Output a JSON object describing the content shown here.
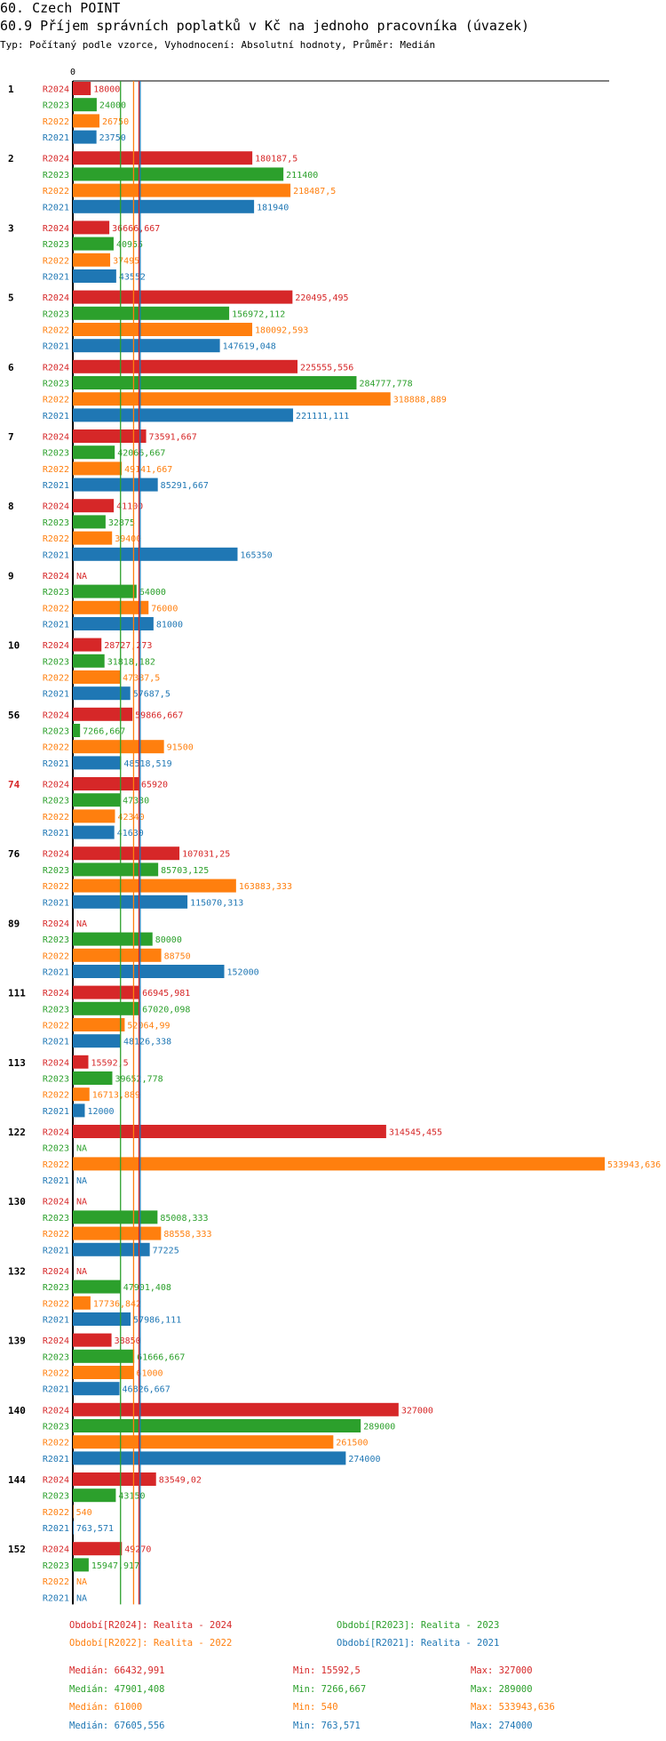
{
  "title_main": "60. Czech POINT",
  "title_sub": "60.9 Příjem správních poplatků v Kč na jednoho pracovníka (úvazek)",
  "subtitle": "Typ: Počítaný podle vzorce, Vyhodnocení: Absolutní hodnoty, Průměr: Medián",
  "chart_data": {
    "type": "bar",
    "orientation": "horizontal",
    "axis_zero_label": "0",
    "xlim": [
      0,
      533943.636
    ],
    "highlight_category": "74",
    "series": [
      {
        "key": "R2024",
        "name": "Období[R2024]: Realita - 2024",
        "color": "#d62728"
      },
      {
        "key": "R2023",
        "name": "Období[R2023]: Realita - 2023",
        "color": "#2ca02c"
      },
      {
        "key": "R2022",
        "name": "Období[R2022]: Realita - 2022",
        "color": "#ff7f0e"
      },
      {
        "key": "R2021",
        "name": "Období[R2021]: Realita - 2021",
        "color": "#1f77b4"
      }
    ],
    "categories": [
      {
        "id": "1",
        "values": [
          18000,
          24000,
          26750,
          23750
        ],
        "labels": [
          "18000",
          "24000",
          "26750",
          "23750"
        ]
      },
      {
        "id": "2",
        "values": [
          180187.5,
          211400,
          218487.5,
          181940
        ],
        "labels": [
          "180187,5",
          "211400",
          "218487,5",
          "181940"
        ]
      },
      {
        "id": "3",
        "values": [
          36666.667,
          40955,
          37495,
          43552
        ],
        "labels": [
          "36666,667",
          "40955",
          "37495",
          "43552"
        ]
      },
      {
        "id": "5",
        "values": [
          220495.495,
          156972.112,
          180092.593,
          147619.048
        ],
        "labels": [
          "220495,495",
          "156972,112",
          "180092,593",
          "147619,048"
        ]
      },
      {
        "id": "6",
        "values": [
          225555.556,
          284777.778,
          318888.889,
          221111.111
        ],
        "labels": [
          "225555,556",
          "284777,778",
          "318888,889",
          "221111,111"
        ]
      },
      {
        "id": "7",
        "values": [
          73591.667,
          42066.667,
          49141.667,
          85291.667
        ],
        "labels": [
          "73591,667",
          "42066,667",
          "49141,667",
          "85291,667"
        ]
      },
      {
        "id": "8",
        "values": [
          41100,
          32875,
          39400,
          165350
        ],
        "labels": [
          "41100",
          "32875",
          "39400",
          "165350"
        ]
      },
      {
        "id": "9",
        "values": [
          null,
          64000,
          76000,
          81000
        ],
        "labels": [
          "NA",
          "64000",
          "76000",
          "81000"
        ]
      },
      {
        "id": "10",
        "values": [
          28727.273,
          31818.182,
          47387.5,
          57687.5
        ],
        "labels": [
          "28727,273",
          "31818,182",
          "47387,5",
          "57687,5"
        ]
      },
      {
        "id": "56",
        "values": [
          59866.667,
          7266.667,
          91500,
          48518.519
        ],
        "labels": [
          "59866,667",
          "7266,667",
          "91500",
          "48518,519"
        ]
      },
      {
        "id": "74",
        "values": [
          65920,
          47330,
          42340,
          41630
        ],
        "labels": [
          "65920",
          "47330",
          "42340",
          "41630"
        ]
      },
      {
        "id": "76",
        "values": [
          107031.25,
          85703.125,
          163883.333,
          115070.313
        ],
        "labels": [
          "107031,25",
          "85703,125",
          "163883,333",
          "115070,313"
        ]
      },
      {
        "id": "89",
        "values": [
          null,
          80000,
          88750,
          152000
        ],
        "labels": [
          "NA",
          "80000",
          "88750",
          "152000"
        ]
      },
      {
        "id": "111",
        "values": [
          66945.981,
          67020.098,
          52064.99,
          48126.338
        ],
        "labels": [
          "66945,981",
          "67020,098",
          "52064,99",
          "48126,338"
        ]
      },
      {
        "id": "113",
        "values": [
          15592.5,
          39652.778,
          16713.889,
          12000
        ],
        "labels": [
          "15592,5",
          "39652,778",
          "16713,889",
          "12000"
        ]
      },
      {
        "id": "122",
        "values": [
          314545.455,
          null,
          533943.636,
          null
        ],
        "labels": [
          "314545,455",
          "NA",
          "533943,636",
          "NA"
        ]
      },
      {
        "id": "130",
        "values": [
          null,
          85008.333,
          88558.333,
          77225
        ],
        "labels": [
          "NA",
          "85008,333",
          "88558,333",
          "77225"
        ]
      },
      {
        "id": "132",
        "values": [
          null,
          47901.408,
          17736.842,
          57986.111
        ],
        "labels": [
          "NA",
          "47901,408",
          "17736,842",
          "57986,111"
        ]
      },
      {
        "id": "139",
        "values": [
          38850,
          61666.667,
          61000,
          46826.667
        ],
        "labels": [
          "38850",
          "61666,667",
          "61000",
          "46826,667"
        ]
      },
      {
        "id": "140",
        "values": [
          327000,
          289000,
          261500,
          274000
        ],
        "labels": [
          "327000",
          "289000",
          "261500",
          "274000"
        ]
      },
      {
        "id": "144",
        "values": [
          83549.02,
          43150,
          540,
          763.571
        ],
        "labels": [
          "83549,02",
          "43150",
          "540",
          "763,571"
        ]
      },
      {
        "id": "152",
        "values": [
          49270,
          15947.917,
          null,
          null
        ],
        "labels": [
          "49270",
          "15947,917",
          "NA",
          "NA"
        ]
      }
    ],
    "reference_lines": [
      {
        "series": "R2024",
        "value": 66432.991
      },
      {
        "series": "R2023",
        "value": 47901.408
      },
      {
        "series": "R2022",
        "value": 61000
      },
      {
        "series": "R2021",
        "value": 67605.556
      }
    ]
  },
  "stats": [
    {
      "color": "#d62728",
      "median": "Medián: 66432,991",
      "min": "Min: 15592,5",
      "max": "Max: 327000"
    },
    {
      "color": "#2ca02c",
      "median": "Medián: 47901,408",
      "min": "Min: 7266,667",
      "max": "Max: 289000"
    },
    {
      "color": "#ff7f0e",
      "median": "Medián: 61000",
      "min": "Min: 540",
      "max": "Max: 533943,636"
    },
    {
      "color": "#1f77b4",
      "median": "Medián: 67605,556",
      "min": "Min: 763,571",
      "max": "Max: 274000"
    }
  ]
}
